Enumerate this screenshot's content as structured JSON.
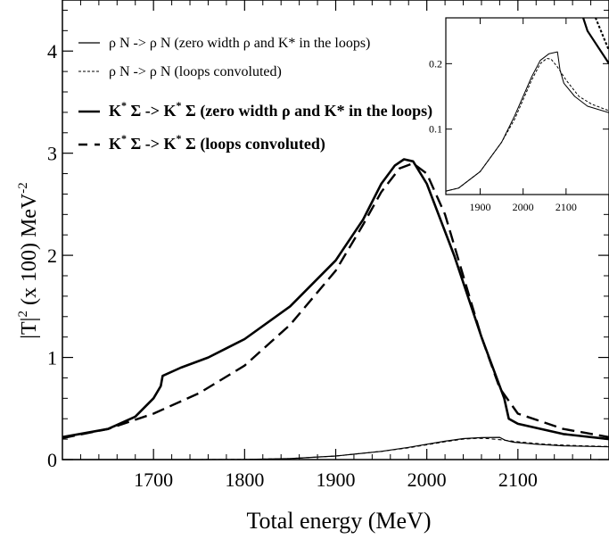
{
  "chart_data": {
    "type": "line",
    "xlabel": "Total energy (MeV)",
    "ylabel": {
      "prefix": "|T|",
      "exp": "2",
      "middle": " (x 100)  MeV",
      "unit_exp": "-2"
    },
    "xlim": [
      1600,
      2200
    ],
    "ylim": [
      0,
      4.5
    ],
    "x_ticks": [
      1700,
      1800,
      1900,
      2000,
      2100
    ],
    "y_ticks": [
      0,
      1,
      2,
      3,
      4
    ],
    "grid": false,
    "legend_position": "top-left",
    "series": [
      {
        "name": "ρ N -> ρ N (zero width ρ  and K* in the loops)",
        "style": "thin-solid",
        "color": "#000000",
        "points": [
          [
            1600,
            0
          ],
          [
            1750,
            0
          ],
          [
            1800,
            0.002
          ],
          [
            1850,
            0.01
          ],
          [
            1900,
            0.035
          ],
          [
            1950,
            0.08
          ],
          [
            1980,
            0.12
          ],
          [
            2000,
            0.15
          ],
          [
            2020,
            0.18
          ],
          [
            2040,
            0.205
          ],
          [
            2060,
            0.215
          ],
          [
            2080,
            0.218
          ],
          [
            2086,
            0.19
          ],
          [
            2095,
            0.17
          ],
          [
            2120,
            0.15
          ],
          [
            2150,
            0.135
          ],
          [
            2200,
            0.125
          ]
        ]
      },
      {
        "name": "ρ N -> ρ N (loops convoluted)",
        "style": "thin-dashed",
        "color": "#000000",
        "points": [
          [
            1600,
            0
          ],
          [
            1750,
            0
          ],
          [
            1800,
            0.002
          ],
          [
            1850,
            0.01
          ],
          [
            1900,
            0.035
          ],
          [
            1950,
            0.08
          ],
          [
            1980,
            0.115
          ],
          [
            2000,
            0.145
          ],
          [
            2020,
            0.175
          ],
          [
            2040,
            0.2
          ],
          [
            2055,
            0.208
          ],
          [
            2065,
            0.207
          ],
          [
            2080,
            0.195
          ],
          [
            2100,
            0.175
          ],
          [
            2130,
            0.15
          ],
          [
            2160,
            0.138
          ],
          [
            2200,
            0.128
          ]
        ]
      },
      {
        "name": "K* Σ -> K* Σ (zero width ρ and K* in the loops)",
        "style": "thick-solid",
        "color": "#000000",
        "points": [
          [
            1600,
            0.22
          ],
          [
            1650,
            0.3
          ],
          [
            1680,
            0.42
          ],
          [
            1700,
            0.6
          ],
          [
            1708,
            0.72
          ],
          [
            1710,
            0.82
          ],
          [
            1730,
            0.9
          ],
          [
            1760,
            1.0
          ],
          [
            1800,
            1.18
          ],
          [
            1850,
            1.5
          ],
          [
            1900,
            1.95
          ],
          [
            1930,
            2.35
          ],
          [
            1950,
            2.7
          ],
          [
            1965,
            2.88
          ],
          [
            1975,
            2.94
          ],
          [
            1985,
            2.92
          ],
          [
            2000,
            2.7
          ],
          [
            2030,
            2.0
          ],
          [
            2060,
            1.2
          ],
          [
            2085,
            0.6
          ],
          [
            2090,
            0.4
          ],
          [
            2100,
            0.35
          ],
          [
            2150,
            0.25
          ],
          [
            2200,
            0.2
          ]
        ]
      },
      {
        "name": "K* Σ -> K* Σ  (loops convoluted)",
        "style": "thick-dashed",
        "color": "#000000",
        "points": [
          [
            1600,
            0.21
          ],
          [
            1650,
            0.3
          ],
          [
            1700,
            0.45
          ],
          [
            1750,
            0.65
          ],
          [
            1800,
            0.92
          ],
          [
            1850,
            1.32
          ],
          [
            1900,
            1.85
          ],
          [
            1930,
            2.3
          ],
          [
            1950,
            2.62
          ],
          [
            1970,
            2.85
          ],
          [
            1985,
            2.9
          ],
          [
            2000,
            2.8
          ],
          [
            2020,
            2.4
          ],
          [
            2040,
            1.8
          ],
          [
            2060,
            1.2
          ],
          [
            2080,
            0.7
          ],
          [
            2100,
            0.45
          ],
          [
            2150,
            0.3
          ],
          [
            2200,
            0.22
          ]
        ]
      }
    ],
    "inset": {
      "xlim": [
        1820,
        2200
      ],
      "ylim": [
        0,
        0.27
      ],
      "x_ticks": [
        1900,
        2000,
        2100
      ],
      "y_ticks": [
        0.1,
        0.2
      ],
      "series_refs": [
        0,
        1,
        2,
        3
      ]
    }
  },
  "legend_items": [
    {
      "name": "ρ N -> ρ N (zero width ρ  and K* in the loops)",
      "style": "thin-solid"
    },
    {
      "name": "ρ N -> ρ N (loops convoluted)",
      "style": "thin-dashed"
    },
    {
      "prefix": "K",
      "sup1": "*",
      "middle": " Σ -> K",
      "sup2": "*",
      "suffix": " Σ (zero width ρ and K* in the loops)",
      "style": "thick-solid"
    },
    {
      "prefix": "K",
      "sup1": "*",
      "middle": " Σ -> K",
      "sup2": "*",
      "suffix": " Σ  (loops convoluted)",
      "style": "thick-dashed"
    }
  ]
}
